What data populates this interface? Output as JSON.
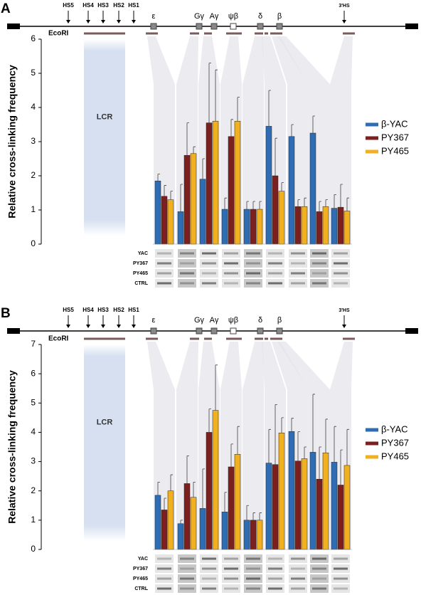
{
  "chart_data": [
    {
      "type": "bar",
      "panel_label": "A",
      "ylabel": "Relative cross-linking frequency",
      "hs_labels": [
        "HS5",
        "HS4",
        "HS3",
        "HS2",
        "HS1"
      ],
      "gene_labels": [
        "ε",
        "Gγ",
        "Aγ",
        "ψβ",
        "δ",
        "β"
      ],
      "three_hs": "3'HS",
      "ecori": "EcoRI",
      "lcr": "LCR",
      "gel_labels": [
        "YAC",
        "PY367",
        "PY465",
        "CTRL"
      ],
      "categories": [
        null,
        null,
        null,
        null,
        null,
        null,
        null,
        null,
        null
      ],
      "series": [
        {
          "name": "β-YAC",
          "color": "#2e6db4",
          "values": [
            1.85,
            0.95,
            1.9,
            1.02,
            1.02,
            3.45,
            3.15,
            3.25,
            1.05
          ],
          "errors": [
            0.2,
            0.8,
            0.6,
            0.33,
            0.23,
            1.05,
            0.35,
            0.5,
            0.4
          ]
        },
        {
          "name": "PY367",
          "color": "#7b1f1f",
          "values": [
            1.4,
            2.6,
            3.55,
            3.15,
            1.02,
            2.0,
            1.1,
            0.95,
            1.08
          ],
          "errors": [
            0.32,
            0.95,
            1.75,
            0.5,
            0.23,
            1.1,
            0.2,
            0.3,
            0.67
          ]
        },
        {
          "name": "PY465",
          "color": "#f0b020",
          "values": [
            1.3,
            2.65,
            3.6,
            3.6,
            1.02,
            1.55,
            1.1,
            1.1,
            0.97
          ],
          "errors": [
            0.25,
            0.2,
            1.5,
            0.7,
            0.23,
            0.25,
            0.25,
            0.2,
            0.38
          ]
        }
      ],
      "ylim": [
        0,
        6
      ],
      "yticks": [
        0,
        1,
        2,
        3,
        4,
        5,
        6
      ],
      "legend": "right"
    },
    {
      "type": "bar",
      "panel_label": "B",
      "ylabel": "Relative cross-linking frequency",
      "hs_labels": [
        "HS5",
        "HS4",
        "HS3",
        "HS2",
        "HS1"
      ],
      "gene_labels": [
        "ε",
        "Gγ",
        "Aγ",
        "ψβ",
        "δ",
        "β"
      ],
      "three_hs": "3'HS",
      "ecori": "EcoRI",
      "lcr": "LCR",
      "gel_labels": [
        "YAC",
        "PY367",
        "PY465",
        "CTRL"
      ],
      "categories": [
        null,
        null,
        null,
        null,
        null,
        null,
        null,
        null,
        null
      ],
      "series": [
        {
          "name": "β-YAC",
          "color": "#2e6db4",
          "values": [
            1.85,
            0.88,
            1.4,
            1.28,
            1.0,
            2.95,
            4.03,
            3.32,
            2.98
          ],
          "errors": [
            0.45,
            0.12,
            1.35,
            0.67,
            0.5,
            1.15,
            0.45,
            1.98,
            1.22
          ]
        },
        {
          "name": "PY367",
          "color": "#7b1f1f",
          "values": [
            1.35,
            2.25,
            4.0,
            2.82,
            1.0,
            2.9,
            3.02,
            2.4,
            2.2
          ],
          "errors": [
            0.4,
            0.95,
            0.8,
            0.78,
            0.25,
            2.05,
            1.0,
            1.1,
            1.2
          ]
        },
        {
          "name": "PY465",
          "color": "#f0b020",
          "values": [
            2.0,
            1.78,
            4.75,
            3.25,
            1.0,
            3.98,
            3.1,
            3.3,
            2.87
          ],
          "errors": [
            0.55,
            0.52,
            1.55,
            0.95,
            0.25,
            0.52,
            0.4,
            1.15,
            1.23
          ]
        }
      ],
      "ylim": [
        0,
        7
      ],
      "yticks": [
        0,
        1,
        2,
        3,
        4,
        5,
        6,
        7
      ],
      "legend": "right"
    }
  ]
}
